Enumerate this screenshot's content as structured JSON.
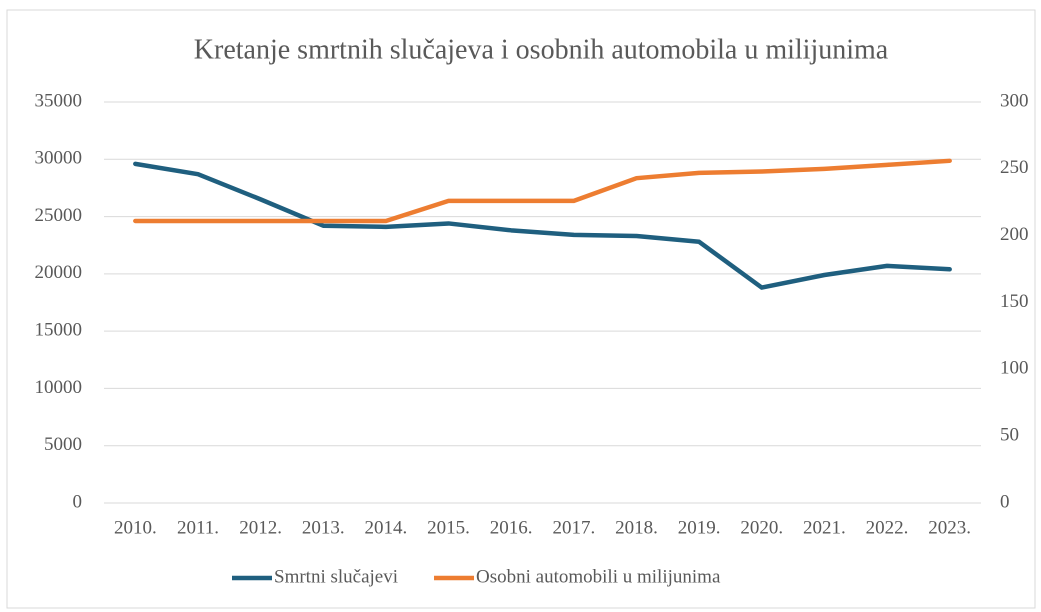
{
  "chart_data": {
    "type": "line",
    "title": "Kretanje smrtnih slučajeva i osobnih automobila u milijunima",
    "categories": [
      "2010.",
      "2011.",
      "2012.",
      "2013.",
      "2014.",
      "2015.",
      "2016.",
      "2017.",
      "2018.",
      "2019.",
      "2020.",
      "2021.",
      "2022.",
      "2023."
    ],
    "series": [
      {
        "name": "Smrtni slučajevi",
        "color": "#1f5f7f",
        "values": [
          29600,
          28700,
          26500,
          24200,
          24100,
          24400,
          23800,
          23400,
          23300,
          22800,
          18800,
          19900,
          20700,
          20400
        ]
      },
      {
        "name": "Osobni automobili u milijunima",
        "color": "#ed7d31",
        "axis": "y2",
        "values": [
          211,
          211,
          211,
          211,
          211,
          226,
          226,
          226,
          243,
          247,
          248,
          250,
          253,
          256
        ]
      }
    ],
    "ylim": [
      0,
      35000
    ],
    "yticks": [
      0,
      5000,
      10000,
      15000,
      20000,
      25000,
      30000,
      35000
    ],
    "y2lim": [
      0,
      300
    ],
    "y2ticks": [
      0,
      50,
      100,
      150,
      200,
      250,
      300
    ],
    "grid": true,
    "legend": "bottom"
  }
}
